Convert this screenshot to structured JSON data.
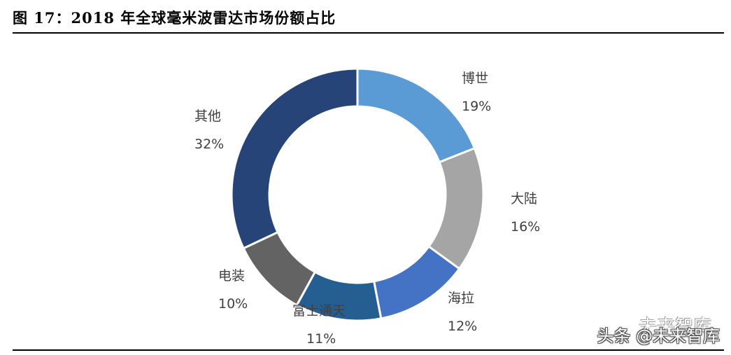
{
  "title": "图 17：2018 年全球毫米波雷达市场份额占比",
  "chart_data": {
    "type": "pie",
    "categories": [
      "博世",
      "大陆",
      "海拉",
      "富士通天",
      "电装",
      "其他"
    ],
    "values": [
      19,
      16,
      12,
      11,
      10,
      32
    ],
    "value_labels": [
      "19%",
      "16%",
      "12%",
      "11%",
      "10%",
      "32%"
    ],
    "colors": [
      "#5b9bd5",
      "#a5a5a5",
      "#4472c4",
      "#255e91",
      "#636363",
      "#264478"
    ],
    "legend": "none"
  },
  "watermark": {
    "logo_text": "未来智库",
    "text": "头条 @未来智库"
  }
}
